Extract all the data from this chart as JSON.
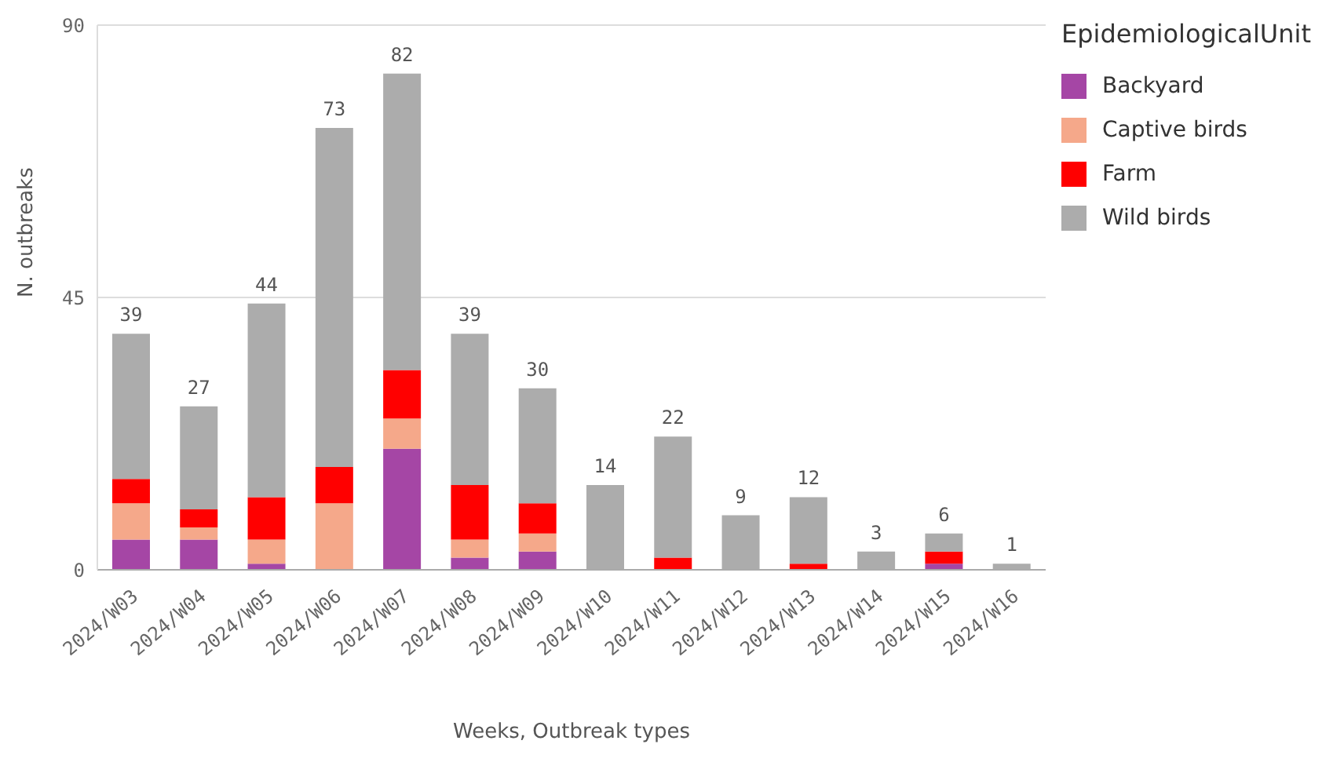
{
  "chart_data": {
    "type": "bar",
    "stacked": true,
    "xlabel": "Weeks, Outbreak types",
    "ylabel": "N. outbreaks",
    "legend_title": "EpidemiologicalUnit",
    "legend": "top right",
    "grid": "y",
    "categories": [
      "2024/W03",
      "2024/W04",
      "2024/W05",
      "2024/W06",
      "2024/W07",
      "2024/W08",
      "2024/W09",
      "2024/W10",
      "2024/W11",
      "2024/W12",
      "2024/W13",
      "2024/W14",
      "2024/W15",
      "2024/W16"
    ],
    "ylim": [
      0,
      90
    ],
    "yticks": [
      0,
      45,
      90
    ],
    "series": [
      {
        "name": "Backyard",
        "color": "#a546a5",
        "values": [
          5,
          5,
          1,
          0,
          20,
          2,
          3,
          0,
          0,
          0,
          0,
          0,
          1,
          0
        ]
      },
      {
        "name": "Captive birds",
        "color": "#f5a88a",
        "values": [
          6,
          2,
          4,
          11,
          5,
          3,
          3,
          0,
          0,
          0,
          0,
          0,
          0,
          0
        ]
      },
      {
        "name": "Farm",
        "color": "#ff0000",
        "values": [
          4,
          3,
          7,
          6,
          8,
          9,
          5,
          0,
          2,
          0,
          1,
          0,
          2,
          0
        ]
      },
      {
        "name": "Wild birds",
        "color": "#acacac",
        "values": [
          24,
          17,
          32,
          56,
          49,
          25,
          19,
          14,
          20,
          9,
          11,
          3,
          3,
          1
        ]
      }
    ],
    "totals": [
      "39",
      "27",
      "44",
      "73",
      "82",
      "39",
      "30",
      "14",
      "22",
      "9",
      "12",
      "3",
      "6",
      "1"
    ]
  }
}
